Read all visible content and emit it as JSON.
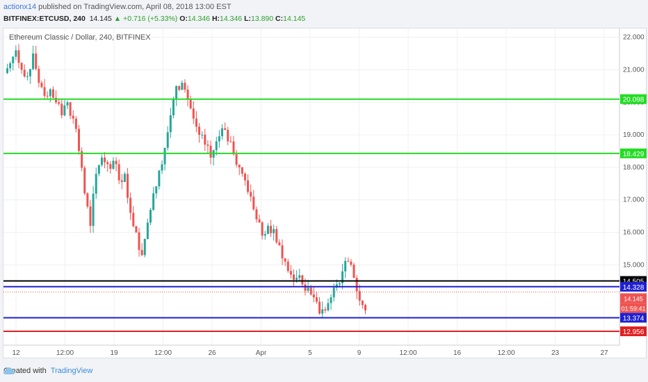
{
  "header": {
    "user": "actionx14",
    "published": " published on TradingView.com, April 08, 2018 13:00 EST",
    "symbol": "BITFINEX:ETCUSD, 240",
    "last": "14.145",
    "change": "▲ +0.716 (+5.33%)",
    "o_label": "O:",
    "o": "14.346",
    "h_label": "H:",
    "h": "14.346",
    "l_label": "L:",
    "l": "13.890",
    "c_label": "C:",
    "c": "14.145"
  },
  "footer": {
    "created_with": "Created with",
    "brand": "TradingView"
  },
  "colors": {
    "up": "#26a69a",
    "down": "#ef5350",
    "green_line": "#22dd22",
    "blue_line": "#1f1fd0",
    "black_line": "#000000",
    "red_line": "#e02020"
  },
  "chart_data": {
    "type": "candlestick",
    "title": "Ethereum Classic / Dollar, 240, BITFINEX",
    "ylim": [
      12.7,
      22.1
    ],
    "y_ticks": [
      22,
      21,
      20,
      19,
      18,
      17,
      16,
      15
    ],
    "x_ticks": [
      "12",
      "12:00",
      "19",
      "12:00",
      "26",
      "Apr",
      "5",
      "9",
      "12:00",
      "16",
      "12:00",
      "23",
      "27"
    ],
    "horizontal_lines": [
      {
        "price": 20.098,
        "label": "20.098",
        "color": "#22dd22"
      },
      {
        "price": 18.429,
        "label": "18.429",
        "color": "#22dd22"
      },
      {
        "price": 14.505,
        "label": "14.505",
        "color": "#000000"
      },
      {
        "price": 14.328,
        "label": "14.328",
        "color": "#1f1fd0"
      },
      {
        "price": 13.374,
        "label": "13.374",
        "color": "#1f1fd0"
      },
      {
        "price": 12.956,
        "label": "12.956",
        "color": "#e02020"
      }
    ],
    "price_tags": [
      {
        "label": "14.145",
        "color": "#ef5350"
      },
      {
        "label": "01:59:41",
        "color": "#ef5350"
      }
    ],
    "close_path": [
      21.2,
      21.6,
      21.0,
      20.8,
      21.5,
      20.6,
      20.2,
      20.4,
      20.0,
      19.6,
      20.0,
      19.5,
      18.5,
      17.2,
      16.2,
      17.8,
      18.3,
      18.1,
      18.2,
      17.6,
      17.8,
      16.6,
      16.0,
      15.3,
      16.3,
      17.2,
      17.9,
      18.6,
      19.6,
      20.5,
      20.6,
      20.1,
      19.5,
      19.0,
      18.7,
      18.3,
      18.8,
      19.2,
      18.8,
      18.4,
      18.0,
      17.6,
      17.1,
      16.4,
      15.9,
      16.2,
      16.1,
      15.6,
      15.1,
      14.7,
      14.6,
      14.4,
      14.3,
      14.0,
      13.5,
      13.6,
      14.0,
      14.4,
      14.8,
      15.1,
      14.6,
      13.9,
      13.6,
      13.4,
      13.5,
      13.7,
      13.6,
      13.3,
      13.2,
      13.5,
      13.6,
      13.9,
      14.145
    ]
  }
}
